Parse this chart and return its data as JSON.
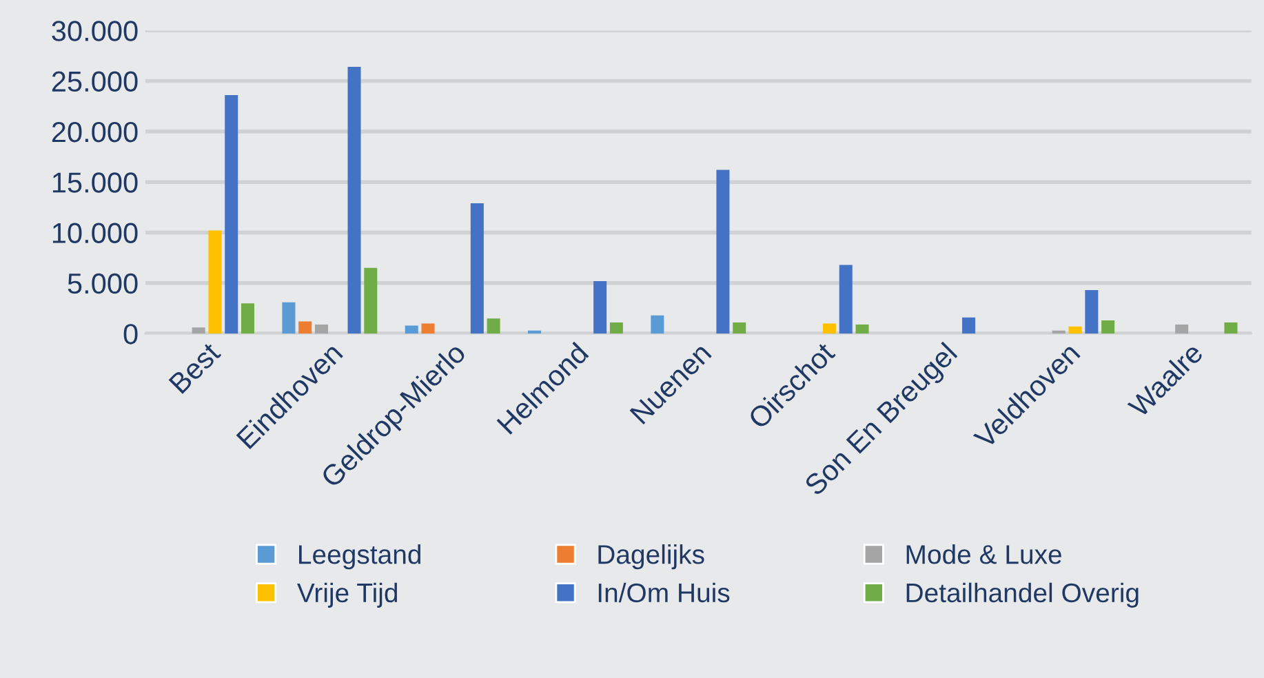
{
  "chart_data": {
    "type": "bar",
    "categories": [
      "Best",
      "Eindhoven",
      "Geldrop-Mierlo",
      "Helmond",
      "Nuenen",
      "Oirschot",
      "Son En Breugel",
      "Veldhoven",
      "Waalre"
    ],
    "series": [
      {
        "name": "Leegstand",
        "color": "#5b9bd5",
        "values": [
          0,
          3100,
          800,
          300,
          1800,
          0,
          0,
          0,
          0
        ]
      },
      {
        "name": "Dagelijks",
        "color": "#ed7d31",
        "values": [
          0,
          1200,
          1000,
          0,
          0,
          0,
          0,
          0,
          0
        ]
      },
      {
        "name": "Mode & Luxe",
        "color": "#a5a5a5",
        "values": [
          600,
          900,
          0,
          0,
          0,
          0,
          0,
          300,
          900
        ]
      },
      {
        "name": "Vrije Tijd",
        "color": "#ffc000",
        "values": [
          10200,
          0,
          0,
          0,
          0,
          1000,
          0,
          700,
          0
        ]
      },
      {
        "name": "In/Om Huis",
        "color": "#4472c4",
        "values": [
          23600,
          26400,
          12900,
          5200,
          16200,
          6800,
          1600,
          4300,
          0
        ]
      },
      {
        "name": "Detailhandel Overig",
        "color": "#70ad47",
        "values": [
          3000,
          6500,
          1500,
          1100,
          1100,
          900,
          0,
          1300,
          1100
        ]
      }
    ],
    "ylim": [
      0,
      30000
    ],
    "yticks": [
      {
        "value": 0,
        "label": "0"
      },
      {
        "value": 5000,
        "label": "5.000"
      },
      {
        "value": 10000,
        "label": "10.000"
      },
      {
        "value": 15000,
        "label": "15.000"
      },
      {
        "value": 20000,
        "label": "20.000"
      },
      {
        "value": 25000,
        "label": "25.000"
      },
      {
        "value": 30000,
        "label": "30.000"
      }
    ],
    "grid": "y",
    "legend": "bottom"
  }
}
